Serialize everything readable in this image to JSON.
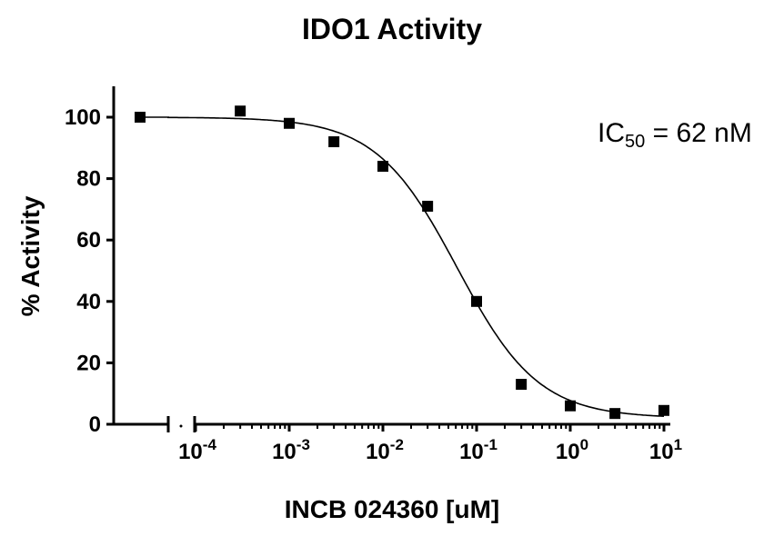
{
  "chart_data": {
    "type": "scatter",
    "title": "IDO1 Activity",
    "xlabel": "INCB 024360 [uM]",
    "ylabel": "% Activity",
    "xscale": "log",
    "x_axis_break": true,
    "ylim": [
      0,
      110
    ],
    "y_ticks": [
      0,
      20,
      40,
      60,
      80,
      100
    ],
    "x_tick_labels": [
      {
        "base": "10",
        "exp": "-4"
      },
      {
        "base": "10",
        "exp": "-3"
      },
      {
        "base": "10",
        "exp": "-2"
      },
      {
        "base": "10",
        "exp": "-1"
      },
      {
        "base": "10",
        "exp": "0"
      },
      {
        "base": "10",
        "exp": "1"
      }
    ],
    "series": [
      {
        "name": "INCB 024360",
        "marker": "square",
        "color": "#000000",
        "x": [
          3e-05,
          0.0003,
          0.001,
          0.003,
          0.01,
          0.03,
          0.1,
          0.3,
          1,
          3,
          10
        ],
        "y": [
          100,
          102,
          98,
          92,
          84,
          71,
          40,
          13,
          6,
          3.5,
          4.5
        ]
      }
    ],
    "fit": {
      "type": "sigmoidal dose-response",
      "top": 100,
      "bottom": 2,
      "ic50_uM": 0.062,
      "hill": 1.0
    },
    "annotation": {
      "prefix": "IC",
      "subscript": "50",
      "suffix": " = 62 nM"
    },
    "grid": false,
    "legend": "none"
  }
}
